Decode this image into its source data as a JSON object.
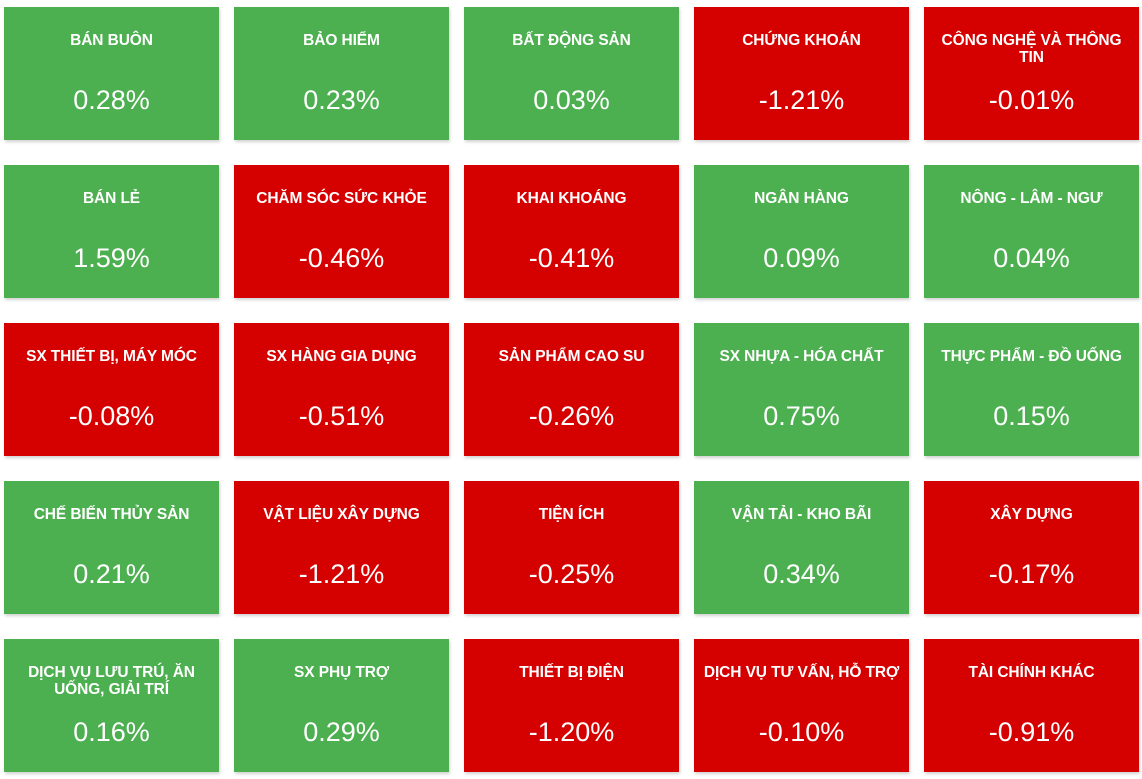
{
  "colors": {
    "up": "#4caf50",
    "down": "#d50000"
  },
  "sectors": [
    {
      "name": "BÁN BUÔN",
      "value": "0.28%",
      "trend": "up"
    },
    {
      "name": "BẢO HIỂM",
      "value": "0.23%",
      "trend": "up"
    },
    {
      "name": "BẤT ĐỘNG SẢN",
      "value": "0.03%",
      "trend": "up"
    },
    {
      "name": "CHỨNG KHOÁN",
      "value": "-1.21%",
      "trend": "down"
    },
    {
      "name": "CÔNG NGHỆ VÀ THÔNG TIN",
      "value": "-0.01%",
      "trend": "down"
    },
    {
      "name": "BÁN LẺ",
      "value": "1.59%",
      "trend": "up"
    },
    {
      "name": "CHĂM SÓC SỨC KHỎE",
      "value": "-0.46%",
      "trend": "down"
    },
    {
      "name": "KHAI KHOÁNG",
      "value": "-0.41%",
      "trend": "down"
    },
    {
      "name": "NGÂN HÀNG",
      "value": "0.09%",
      "trend": "up"
    },
    {
      "name": "NÔNG - LÂM - NGƯ",
      "value": "0.04%",
      "trend": "up"
    },
    {
      "name": "SX THIẾT BỊ, MÁY MÓC",
      "value": "-0.08%",
      "trend": "down"
    },
    {
      "name": "SX HÀNG GIA DỤNG",
      "value": "-0.51%",
      "trend": "down"
    },
    {
      "name": "SẢN PHẨM CAO SU",
      "value": "-0.26%",
      "trend": "down"
    },
    {
      "name": "SX NHỰA - HÓA CHẤT",
      "value": "0.75%",
      "trend": "up"
    },
    {
      "name": "THỰC PHẨM - ĐỒ UỐNG",
      "value": "0.15%",
      "trend": "up"
    },
    {
      "name": "CHẾ BIẾN THỦY SẢN",
      "value": "0.21%",
      "trend": "up"
    },
    {
      "name": "VẬT LIỆU XÂY DỰNG",
      "value": "-1.21%",
      "trend": "down"
    },
    {
      "name": "TIỆN ÍCH",
      "value": "-0.25%",
      "trend": "down"
    },
    {
      "name": "VẬN TẢI - KHO BÃI",
      "value": "0.34%",
      "trend": "up"
    },
    {
      "name": "XÂY DỰNG",
      "value": "-0.17%",
      "trend": "down"
    },
    {
      "name": "DỊCH VỤ LƯU TRÚ, ĂN UỐNG, GIẢI TRÍ",
      "value": "0.16%",
      "trend": "up"
    },
    {
      "name": "SX PHỤ TRỢ",
      "value": "0.29%",
      "trend": "up"
    },
    {
      "name": "THIẾT BỊ ĐIỆN",
      "value": "-1.20%",
      "trend": "down"
    },
    {
      "name": "DỊCH VỤ TƯ VẤN, HỖ TRỢ",
      "value": "-0.10%",
      "trend": "down"
    },
    {
      "name": "TÀI CHÍNH KHÁC",
      "value": "-0.91%",
      "trend": "down"
    }
  ]
}
